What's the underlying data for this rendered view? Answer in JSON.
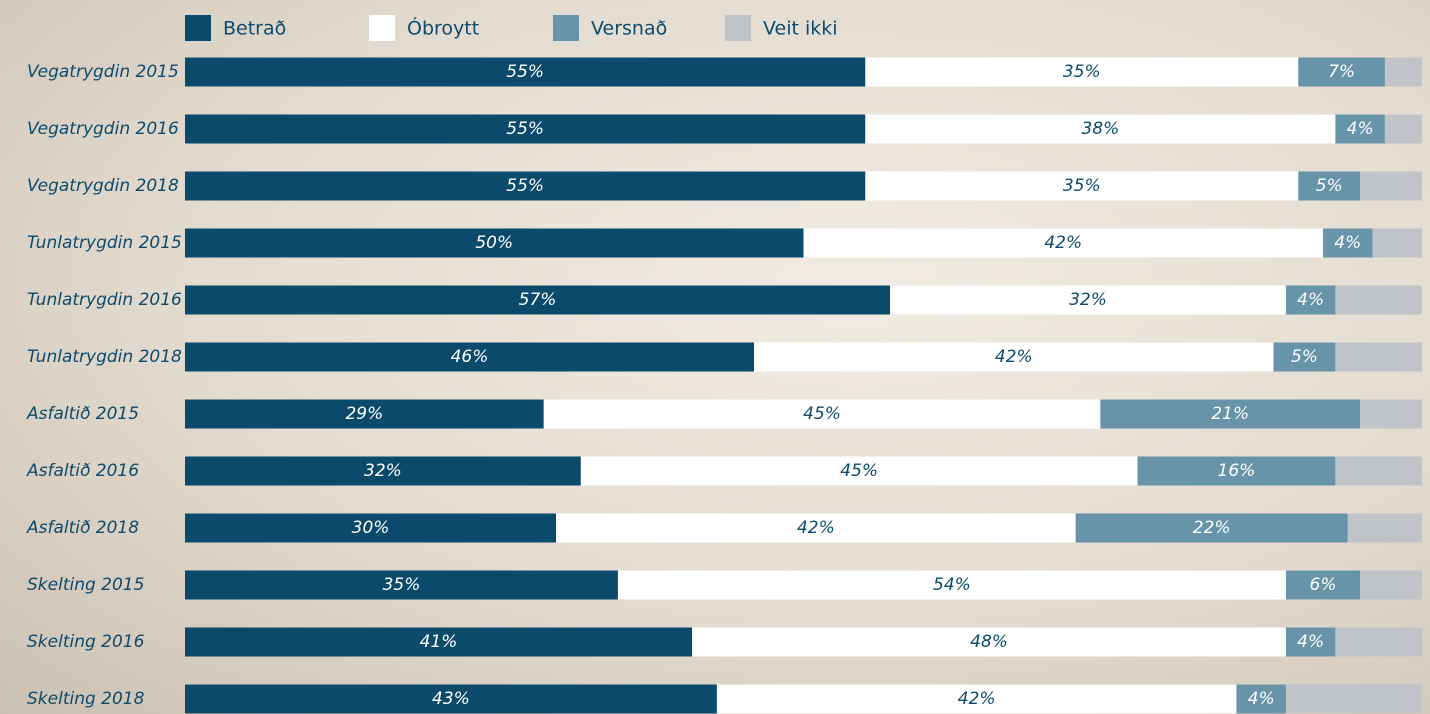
{
  "chart_data": {
    "type": "stacked-barh",
    "categories": [
      "Vegatrygdin 2015",
      "Vegatrygdin 2016",
      "Vegatrygdin 2018",
      "Tunlatrygdin 2015",
      "Tunlatrygdin 2016",
      "Tunlatrygdin 2018",
      "Asfaltið 2015",
      "Asfaltið 2016",
      "Asfaltið 2018",
      "Skelting 2015",
      "Skelting 2016",
      "Skelting 2018"
    ],
    "xlim": [
      0,
      100
    ],
    "legend": "top",
    "series": [
      {
        "name": "Betrað",
        "color": "#0b4a6b",
        "values": [
          55,
          55,
          55,
          50,
          57,
          46,
          29,
          32,
          30,
          35,
          41,
          43
        ],
        "value_labels": [
          "55%",
          "55%",
          "55%",
          "50%",
          "57%",
          "46%",
          "29%",
          "32%",
          "30%",
          "35%",
          "41%",
          "43%"
        ]
      },
      {
        "name": "Óbroytt",
        "color": "#ffffff",
        "values": [
          35,
          38,
          35,
          42,
          32,
          42,
          45,
          45,
          42,
          54,
          48,
          42
        ],
        "value_labels": [
          "35%",
          "38%",
          "35%",
          "42%",
          "32%",
          "42%",
          "45%",
          "45%",
          "42%",
          "54%",
          "48%",
          "42%"
        ]
      },
      {
        "name": "Versnað",
        "color": "#6894a9",
        "values": [
          7,
          4,
          5,
          4,
          4,
          5,
          21,
          16,
          22,
          6,
          4,
          4
        ],
        "value_labels": [
          "7%",
          "4%",
          "5%",
          "4%",
          "4%",
          "5%",
          "21%",
          "16%",
          "22%",
          "6%",
          "4%",
          "4%"
        ]
      },
      {
        "name": "Veit ikki",
        "color": "#c0c3c7",
        "values": [
          3,
          3,
          5,
          4,
          7,
          7,
          5,
          7,
          6,
          5,
          7,
          11
        ]
      }
    ]
  }
}
